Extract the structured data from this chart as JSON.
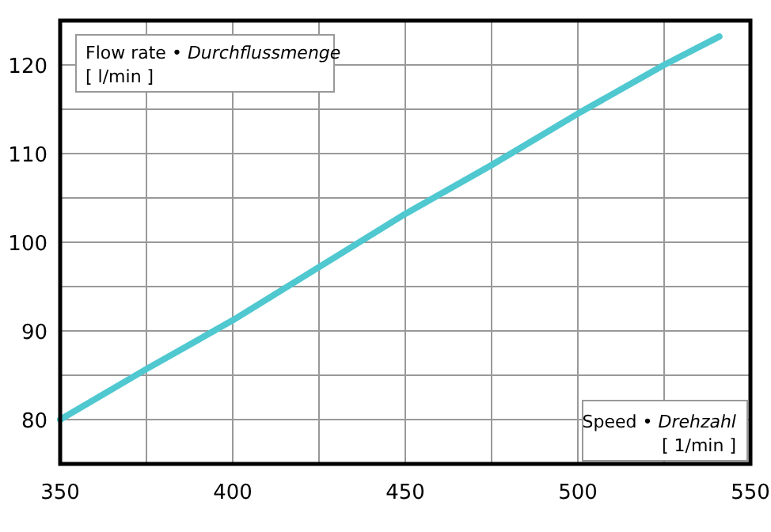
{
  "chart_data": {
    "type": "line",
    "xlabel": "Speed • Drehzahl\n[ 1/min ]",
    "ylabel": "Flow rate • Durchflussmenge\n[ l/min ]",
    "x": [
      350,
      375,
      400,
      425,
      450,
      475,
      500,
      525,
      541
    ],
    "series": [
      {
        "color": "#4fc8d0",
        "values": [
          80,
          85.7,
          91.2,
          97.2,
          103.2,
          108.7,
          114.5,
          120,
          123.2
        ]
      }
    ],
    "xlim": [
      350,
      550
    ],
    "xticks": [
      350,
      {
        "value": 375,
        "label": null
      },
      400,
      {
        "value": 425,
        "label": null
      },
      450,
      {
        "value": 475,
        "label": null
      },
      500,
      {
        "value": 525,
        "label": null
      },
      550
    ],
    "ylim": [
      75,
      125
    ],
    "yticks": [
      {
        "value": 75,
        "label": null
      },
      80,
      {
        "value": 85,
        "label": null
      },
      90,
      {
        "value": 95,
        "label": null
      },
      100,
      {
        "value": 105,
        "label": null
      },
      110,
      {
        "value": 115,
        "label": null
      },
      120,
      {
        "value": 125,
        "label": null
      }
    ],
    "grid": true,
    "marker": "none",
    "line_style": "solid"
  }
}
